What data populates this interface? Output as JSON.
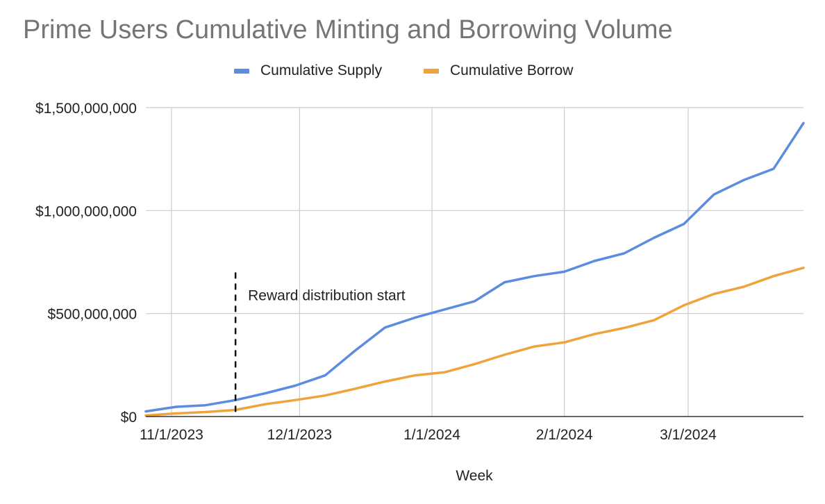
{
  "chart_data": {
    "type": "line",
    "title": "Prime Users Cumulative Minting and Borrowing Volume",
    "xlabel": "Week",
    "ylabel": "",
    "ylim": [
      0,
      1500000000
    ],
    "yticks": [
      {
        "value": 0,
        "label": "$0"
      },
      {
        "value": 500000000,
        "label": "$500,000,000"
      },
      {
        "value": 1000000000,
        "label": "$1,000,000,000"
      },
      {
        "value": 1500000000,
        "label": "$1,500,000,000"
      }
    ],
    "xlim": [
      "2023-10-26",
      "2024-03-28"
    ],
    "xticks": [
      {
        "date": "2023-11-01",
        "label": "11/1/2023"
      },
      {
        "date": "2023-12-01",
        "label": "12/1/2023"
      },
      {
        "date": "2024-01-01",
        "label": "1/1/2024"
      },
      {
        "date": "2024-02-01",
        "label": "2/1/2024"
      },
      {
        "date": "2024-03-01",
        "label": "3/1/2024"
      }
    ],
    "grid": true,
    "legend_position": "top",
    "x": [
      "2023-10-26",
      "2023-11-02",
      "2023-11-09",
      "2023-11-16",
      "2023-11-23",
      "2023-11-30",
      "2023-12-07",
      "2023-12-14",
      "2023-12-21",
      "2023-12-28",
      "2024-01-04",
      "2024-01-11",
      "2024-01-18",
      "2024-01-25",
      "2024-02-01",
      "2024-02-08",
      "2024-02-15",
      "2024-02-22",
      "2024-02-29",
      "2024-03-07",
      "2024-03-14",
      "2024-03-21",
      "2024-03-28"
    ],
    "series": [
      {
        "name": "Cumulative Supply",
        "color": "#5b8ce0",
        "values": [
          25000000,
          47000000,
          55000000,
          80000000,
          113000000,
          150000000,
          200000000,
          320000000,
          432000000,
          480000000,
          520000000,
          560000000,
          652000000,
          682000000,
          703000000,
          755000000,
          792000000,
          868000000,
          935000000,
          1078000000,
          1148000000,
          1203000000,
          1425000000
        ]
      },
      {
        "name": "Cumulative Borrow",
        "color": "#f0a33a",
        "values": [
          5000000,
          15000000,
          22000000,
          32000000,
          60000000,
          80000000,
          102000000,
          135000000,
          170000000,
          200000000,
          215000000,
          255000000,
          300000000,
          340000000,
          360000000,
          400000000,
          430000000,
          468000000,
          540000000,
          595000000,
          630000000,
          682000000,
          722000000
        ]
      }
    ],
    "annotation": {
      "date": "2023-11-16",
      "label": "Reward distribution start",
      "y_top": 700000000
    }
  }
}
